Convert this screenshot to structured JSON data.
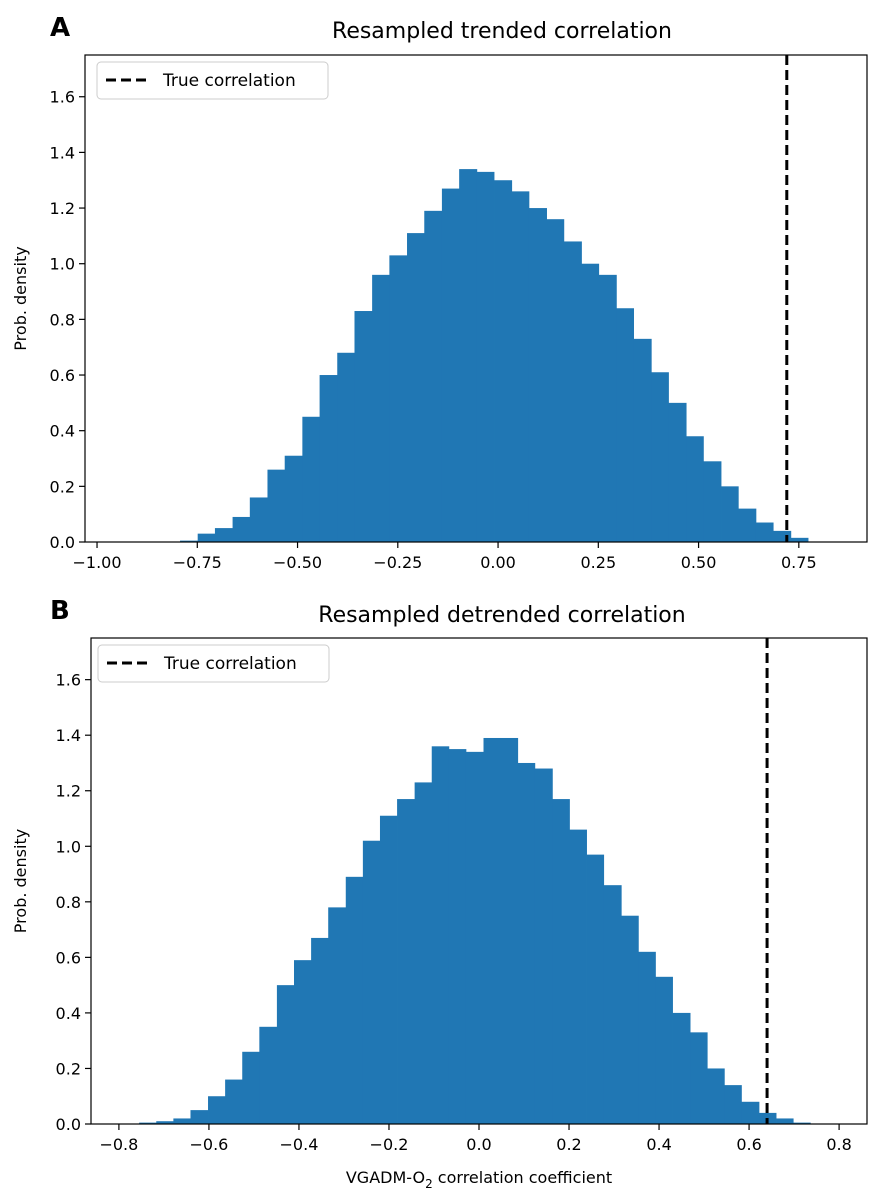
{
  "chart_data": [
    {
      "type": "bar",
      "panel_label": "A",
      "title": "Resampled trended correlation",
      "xlabel": "",
      "ylabel": "Prob. density",
      "xlim": [
        -1.03,
        0.92
      ],
      "ylim": [
        0,
        1.75
      ],
      "x_ticks": [
        -1.0,
        -0.75,
        -0.5,
        -0.25,
        0.0,
        0.25,
        0.5,
        0.75
      ],
      "x_tick_labels": [
        "−1.00",
        "−0.75",
        "−0.50",
        "−0.25",
        "0.00",
        "0.25",
        "0.50",
        "0.75"
      ],
      "y_ticks": [
        0.0,
        0.2,
        0.4,
        0.6,
        0.8,
        1.0,
        1.2,
        1.4,
        1.6
      ],
      "y_tick_labels": [
        "0.0",
        "0.2",
        "0.4",
        "0.6",
        "0.8",
        "1.0",
        "1.2",
        "1.4",
        "1.6"
      ],
      "bin_edges": [
        -0.793,
        -0.749,
        -0.706,
        -0.662,
        -0.619,
        -0.575,
        -0.532,
        -0.488,
        -0.445,
        -0.401,
        -0.358,
        -0.314,
        -0.271,
        -0.227,
        -0.184,
        -0.14,
        -0.097,
        -0.053,
        -0.01,
        0.034,
        0.077,
        0.121,
        0.164,
        0.208,
        0.251,
        0.295,
        0.338,
        0.382,
        0.425,
        0.469,
        0.512,
        0.556,
        0.599,
        0.643,
        0.686,
        0.73,
        0.773
      ],
      "densities": [
        0.005,
        0.03,
        0.05,
        0.09,
        0.16,
        0.26,
        0.31,
        0.45,
        0.6,
        0.68,
        0.83,
        0.96,
        1.03,
        1.11,
        1.19,
        1.27,
        1.34,
        1.33,
        1.3,
        1.26,
        1.2,
        1.16,
        1.08,
        1.0,
        0.96,
        0.84,
        0.73,
        0.61,
        0.5,
        0.38,
        0.29,
        0.2,
        0.12,
        0.07,
        0.04,
        0.015
      ],
      "reference_line": {
        "x": 0.72,
        "style": "dashed",
        "color": "#000000"
      },
      "legend": {
        "position": "top-left",
        "entries": [
          "True correlation"
        ]
      },
      "bar_color": "#2077b4",
      "grid": false
    },
    {
      "type": "bar",
      "panel_label": "B",
      "title": "Resampled detrended correlation",
      "xlabel": "VGADM-O",
      "xlabel_subscript": "2",
      "xlabel_suffix": " correlation coefficient",
      "ylabel": "Prob. density",
      "xlim": [
        -0.862,
        0.862
      ],
      "ylim": [
        0,
        1.75
      ],
      "x_ticks": [
        -0.8,
        -0.6,
        -0.4,
        -0.2,
        0.0,
        0.2,
        0.4,
        0.6,
        0.8
      ],
      "x_tick_labels": [
        "−0.8",
        "−0.6",
        "−0.4",
        "−0.2",
        "0.0",
        "0.2",
        "0.4",
        "0.6",
        "0.8"
      ],
      "y_ticks": [
        0.0,
        0.2,
        0.4,
        0.6,
        0.8,
        1.0,
        1.2,
        1.4,
        1.6
      ],
      "y_tick_labels": [
        "0.0",
        "0.2",
        "0.4",
        "0.6",
        "0.8",
        "1.0",
        "1.2",
        "1.4",
        "1.6"
      ],
      "bin_edges": [
        -0.755,
        -0.717,
        -0.679,
        -0.641,
        -0.602,
        -0.564,
        -0.526,
        -0.488,
        -0.449,
        -0.411,
        -0.373,
        -0.335,
        -0.296,
        -0.258,
        -0.22,
        -0.182,
        -0.143,
        -0.105,
        -0.067,
        -0.029,
        0.01,
        0.048,
        0.086,
        0.124,
        0.163,
        0.201,
        0.239,
        0.277,
        0.316,
        0.354,
        0.392,
        0.43,
        0.469,
        0.507,
        0.545,
        0.583,
        0.622,
        0.66,
        0.698,
        0.736
      ],
      "densities": [
        0.005,
        0.01,
        0.02,
        0.05,
        0.1,
        0.16,
        0.26,
        0.35,
        0.5,
        0.59,
        0.67,
        0.78,
        0.89,
        1.02,
        1.11,
        1.17,
        1.23,
        1.36,
        1.35,
        1.34,
        1.39,
        1.39,
        1.3,
        1.28,
        1.17,
        1.06,
        0.97,
        0.86,
        0.75,
        0.62,
        0.53,
        0.4,
        0.33,
        0.2,
        0.14,
        0.08,
        0.04,
        0.02,
        0.005
      ],
      "reference_line": {
        "x": 0.64,
        "style": "dashed",
        "color": "#000000"
      },
      "legend": {
        "position": "top-left",
        "entries": [
          "True correlation"
        ]
      },
      "bar_color": "#2077b4",
      "grid": false
    }
  ]
}
